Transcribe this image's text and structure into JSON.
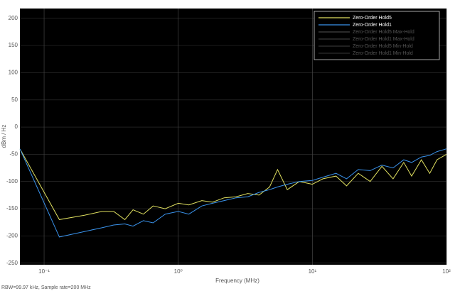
{
  "chart_data": {
    "type": "line",
    "x_label": "Frequency (MHz)",
    "y_label": "dBm / Hz",
    "footer": "RBW=99.97 kHz, Sample rate=200 MHz",
    "log_x": true,
    "grid": true,
    "legend": "top-right",
    "xlim": [
      0.066,
      100
    ],
    "ylim": [
      -253,
      218
    ],
    "xticks": [
      {
        "value": 0.1,
        "label": "10⁻¹"
      },
      {
        "value": 1,
        "label": "10⁰"
      },
      {
        "value": 10,
        "label": "10¹"
      },
      {
        "value": 100,
        "label": "10²"
      }
    ],
    "yticks": [
      200,
      150,
      100,
      50,
      0,
      -50,
      -100,
      -150,
      -200,
      -250
    ],
    "x": [
      0.066,
      0.13,
      0.2,
      0.27,
      0.33,
      0.4,
      0.46,
      0.55,
      0.65,
      0.8,
      1.0,
      1.2,
      1.5,
      1.8,
      2.2,
      2.7,
      3.3,
      4.0,
      4.8,
      5.5,
      6.5,
      8,
      10,
      12,
      15,
      18,
      22,
      27,
      33,
      40,
      48,
      55,
      65,
      75,
      85,
      100
    ],
    "series": [
      {
        "name": "Zero-Order Hold5",
        "color": "#e0e060",
        "values": [
          -40,
          -170,
          -162,
          -155,
          -155,
          -170,
          -152,
          -160,
          -145,
          -150,
          -140,
          -143,
          -135,
          -138,
          -130,
          -128,
          -122,
          -125,
          -110,
          -78,
          -115,
          -100,
          -105,
          -95,
          -90,
          -108,
          -85,
          -100,
          -72,
          -95,
          -65,
          -90,
          -60,
          -85,
          -60,
          -50
        ]
      },
      {
        "name": "Zero-Order Hold1",
        "color": "#3a93ec",
        "values": [
          -40,
          -202,
          -192,
          -185,
          -180,
          -178,
          -182,
          -172,
          -176,
          -160,
          -155,
          -160,
          -145,
          -140,
          -135,
          -130,
          -128,
          -120,
          -115,
          -110,
          -105,
          -100,
          -98,
          -92,
          -85,
          -95,
          -78,
          -80,
          -70,
          -75,
          -60,
          -65,
          -55,
          -52,
          -45,
          -40
        ]
      },
      {
        "name": "Zero-Order Hold5 Max-Hold",
        "color": "#444444"
      },
      {
        "name": "Zero-Order Hold1 Max-Hold",
        "color": "#3a3a3a"
      },
      {
        "name": "Zero-Order Hold5 Min-Hold",
        "color": "#333333"
      },
      {
        "name": "Zero-Order Hold1 Min-Hold",
        "color": "#2c2c2c"
      }
    ]
  }
}
